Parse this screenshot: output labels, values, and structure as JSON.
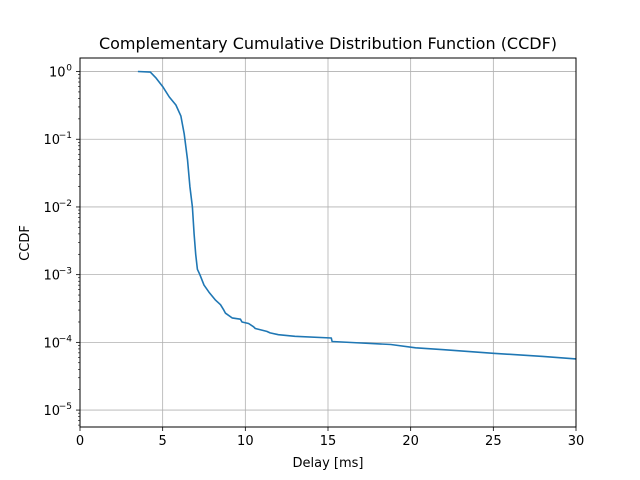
{
  "chart_data": {
    "type": "line",
    "title": "Complementary Cumulative Distribution Function (CCDF)",
    "xlabel": "Delay [ms]",
    "ylabel": "CCDF",
    "xlim": [
      0,
      30
    ],
    "ylim_log10": [
      -5.25,
      0.2
    ],
    "yscale": "log",
    "grid": true,
    "x_ticks": [
      0,
      5,
      10,
      15,
      20,
      25,
      30
    ],
    "x_tick_labels": [
      "0",
      "5",
      "10",
      "15",
      "20",
      "25",
      "30"
    ],
    "y_ticks_exponent": [
      0,
      -1,
      -2,
      -3,
      -4,
      -5
    ],
    "y_tick_base": "10",
    "y_tick_exponent_labels": [
      "0",
      "−1",
      "−2",
      "−3",
      "−4",
      "−5"
    ],
    "series": [
      {
        "color": "#1f77b4",
        "x": [
          3.5,
          4.25,
          4.6,
          5.0,
          5.4,
          5.8,
          6.1,
          6.3,
          6.5,
          6.65,
          6.8,
          6.9,
          7.0,
          7.1,
          7.25,
          7.5,
          7.8,
          8.2,
          8.5,
          8.7,
          8.8,
          9.2,
          9.7,
          9.8,
          10.2,
          10.5,
          10.6,
          11.3,
          11.5,
          12.0,
          13.0,
          15.2,
          15.25,
          17.0,
          18.8,
          20.3,
          22.0,
          25.0,
          28.0,
          30.0
        ],
        "y": [
          1.0,
          0.98,
          0.8,
          0.6,
          0.42,
          0.32,
          0.22,
          0.12,
          0.05,
          0.02,
          0.01,
          0.004,
          0.002,
          0.0012,
          0.001,
          0.0007,
          0.00055,
          0.00042,
          0.00036,
          0.0003,
          0.00027,
          0.00023,
          0.00022,
          0.0002,
          0.00019,
          0.00017,
          0.00016,
          0.000145,
          0.000138,
          0.00013,
          0.000123,
          0.000116,
          0.000103,
          9.8e-05,
          9.3e-05,
          8.3e-05,
          7.8e-05,
          6.9e-05,
          6.2e-05,
          5.7e-05
        ]
      }
    ]
  }
}
